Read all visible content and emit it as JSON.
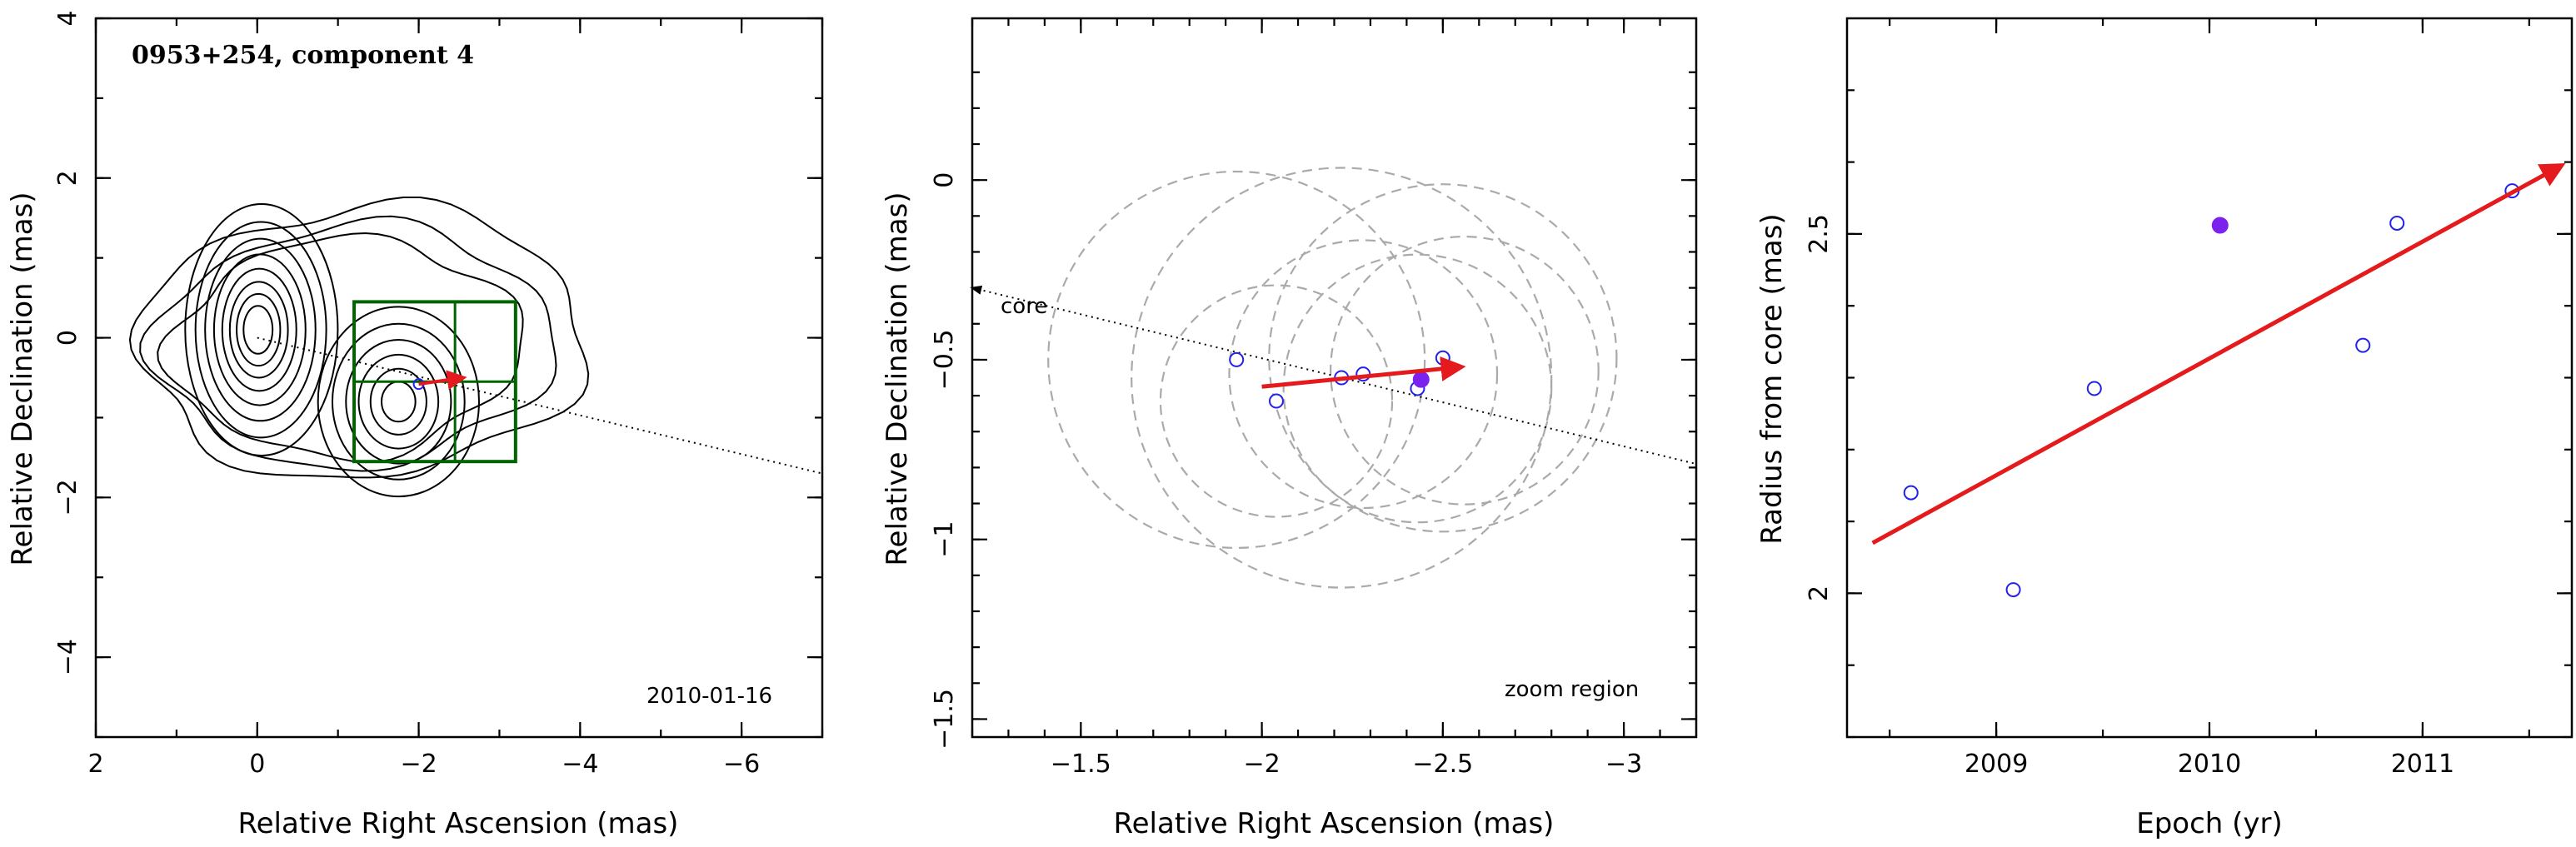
{
  "chart_data": [
    {
      "type": "contour",
      "title": "0953+254, component 4",
      "annotation": "2010-01-16",
      "xlabel": "Relative Right Ascension (mas)",
      "ylabel": "Relative Declination (mas)",
      "xlim": [
        2,
        -7
      ],
      "ylim": [
        -5,
        4
      ],
      "xticks": [
        2,
        0,
        -2,
        -4,
        -6
      ],
      "yticks": [
        4,
        2,
        0,
        -2,
        -4
      ],
      "xtick_labels": [
        "2",
        "0",
        "−2",
        "−4",
        "−6"
      ],
      "ytick_labels": [
        "4",
        "2",
        "0",
        "−2",
        "−4"
      ],
      "core_line": {
        "x": [
          0,
          -7
        ],
        "y": [
          0,
          -1.7
        ]
      },
      "zoom_box": {
        "x": [
          -1.2,
          -3.2
        ],
        "y": [
          0.45,
          -1.55
        ]
      },
      "component_position": {
        "x": -2.0,
        "y": -0.58
      },
      "motion_arrow": {
        "from": [
          -2.0,
          -0.58
        ],
        "to": [
          -2.55,
          -0.5
        ]
      },
      "colors": {
        "contour": "#000000",
        "box": "#006400",
        "arrow": "#e41a1c"
      }
    },
    {
      "type": "scatter",
      "annotation": "zoom region",
      "core_label": "core",
      "xlabel": "Relative Right Ascension (mas)",
      "ylabel": "Relative Declination (mas)",
      "xlim": [
        -1.2,
        -3.2
      ],
      "ylim": [
        -1.55,
        0.45
      ],
      "xticks": [
        -1.5,
        -2,
        -2.5,
        -3
      ],
      "yticks": [
        0,
        -0.5,
        -1,
        -1.5
      ],
      "xtick_labels": [
        "−1.5",
        "−2",
        "−2.5",
        "−3"
      ],
      "ytick_labels": [
        "0",
        "−0.5",
        "−1",
        "−1.5"
      ],
      "points": [
        {
          "x": -1.93,
          "y": -0.5
        },
        {
          "x": -2.04,
          "y": -0.615
        },
        {
          "x": -2.22,
          "y": -0.55
        },
        {
          "x": -2.28,
          "y": -0.54
        },
        {
          "x": -2.43,
          "y": -0.58
        },
        {
          "x": -2.5,
          "y": -0.495
        }
      ],
      "highlight_point": {
        "x": -2.44,
        "y": -0.555
      },
      "error_circles": [
        {
          "x": -1.93,
          "y": -0.5,
          "r": 0.52
        },
        {
          "x": -2.04,
          "y": -0.615,
          "r": 0.32
        },
        {
          "x": -2.22,
          "y": -0.55,
          "r": 0.58
        },
        {
          "x": -2.28,
          "y": -0.54,
          "r": 0.37
        },
        {
          "x": -2.43,
          "y": -0.58,
          "r": 0.37
        },
        {
          "x": -2.5,
          "y": -0.495,
          "r": 0.48
        },
        {
          "x": -2.56,
          "y": -0.53,
          "r": 0.37
        }
      ],
      "core_line": {
        "x": [
          -1.2,
          -3.2
        ],
        "y": [
          -0.3,
          -0.79
        ]
      },
      "motion_arrow": {
        "from": [
          -2.0,
          -0.575
        ],
        "to": [
          -2.55,
          -0.52
        ]
      },
      "colors": {
        "points": "#2222ee",
        "highlight": "#7b22ee",
        "circles": "#aaaaaa",
        "arrow": "#e41a1c"
      }
    },
    {
      "type": "scatter",
      "xlabel": "Epoch (yr)",
      "ylabel": "Radius from core (mas)",
      "xlim": [
        2008.3,
        2011.7
      ],
      "ylim": [
        1.8,
        2.8
      ],
      "xticks": [
        2009,
        2010,
        2011
      ],
      "yticks": [
        2,
        2.5
      ],
      "xtick_labels": [
        "2009",
        "2010",
        "2011"
      ],
      "ytick_labels": [
        "2",
        "2.5"
      ],
      "points": [
        {
          "x": 2008.6,
          "y": 2.14
        },
        {
          "x": 2009.08,
          "y": 2.005
        },
        {
          "x": 2009.46,
          "y": 2.285
        },
        {
          "x": 2010.72,
          "y": 2.345
        },
        {
          "x": 2010.88,
          "y": 2.515
        },
        {
          "x": 2011.42,
          "y": 2.56
        }
      ],
      "highlight_point": {
        "x": 2010.05,
        "y": 2.512
      },
      "fit_arrow": {
        "from": [
          2008.42,
          2.07
        ],
        "to": [
          2011.65,
          2.595
        ]
      },
      "colors": {
        "points": "#2222ee",
        "highlight": "#7b22ee",
        "arrow": "#e41a1c"
      }
    }
  ]
}
